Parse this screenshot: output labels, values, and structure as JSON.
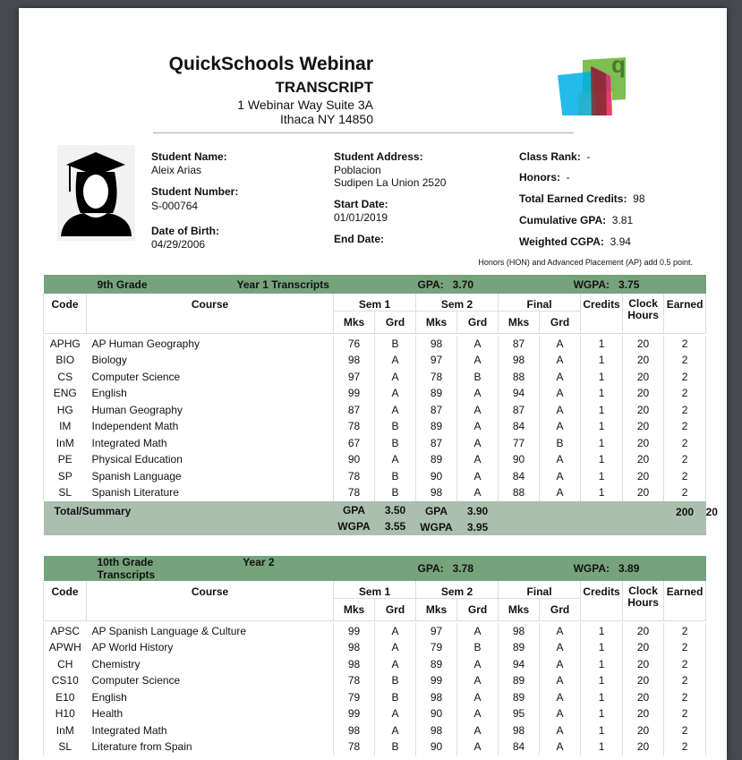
{
  "header": {
    "school": "QuickSchools Webinar",
    "doc_title": "TRANSCRIPT",
    "address_line1": "1 Webinar Way Suite 3A",
    "address_line2": "Ithaca NY 14850",
    "logo_letter": "q"
  },
  "student": {
    "name_label": "Student Name:",
    "name": "Aleix Arias",
    "number_label": "Student Number:",
    "number": "S-000764",
    "dob_label": "Date of Birth:",
    "dob": "04/29/2006",
    "address_label": "Student Address:",
    "address_line1": "Poblacion",
    "address_line2": "Sudipen La Union 2520",
    "start_label": "Start Date:",
    "start": "01/01/2019",
    "end_label": "End Date:",
    "end": "",
    "rank_label": "Class Rank:",
    "rank": "-",
    "honors_label": "Honors:",
    "honors": "-",
    "credits_label": "Total Earned Credits:",
    "credits": "98",
    "cgpa_label": "Cumulative GPA:",
    "cgpa": "3.81",
    "wcgpa_label": "Weighted CGPA:",
    "wcgpa": "3.94",
    "note": "Honors (HON) and Advanced Placement (AP) add 0.5 point."
  },
  "columns": {
    "code": "Code",
    "course": "Course",
    "sem1": "Sem 1",
    "sem2": "Sem 2",
    "final": "Final",
    "credits": "Credits",
    "clock": "Clock Hours",
    "earned": "Earned",
    "mks": "Mks",
    "grd": "Grd"
  },
  "years": [
    {
      "grade": "9th Grade",
      "title": "Year 1 Transcripts",
      "gpa_label": "GPA:",
      "gpa": "3.70",
      "wgpa_label": "WGPA:",
      "wgpa": "3.75",
      "rows": [
        [
          "APHG",
          "AP Human Geography",
          "76",
          "B",
          "98",
          "A",
          "87",
          "A",
          "1",
          "20",
          "2"
        ],
        [
          "BIO",
          "Biology",
          "98",
          "A",
          "97",
          "A",
          "98",
          "A",
          "1",
          "20",
          "2"
        ],
        [
          "CS",
          "Computer Science",
          "97",
          "A",
          "78",
          "B",
          "88",
          "A",
          "1",
          "20",
          "2"
        ],
        [
          "ENG",
          "English",
          "99",
          "A",
          "89",
          "A",
          "94",
          "A",
          "1",
          "20",
          "2"
        ],
        [
          "HG",
          "Human Geography",
          "87",
          "A",
          "87",
          "A",
          "87",
          "A",
          "1",
          "20",
          "2"
        ],
        [
          "IM",
          "Independent Math",
          "78",
          "B",
          "89",
          "A",
          "84",
          "A",
          "1",
          "20",
          "2"
        ],
        [
          "InM",
          "Integrated Math",
          "67",
          "B",
          "87",
          "A",
          "77",
          "B",
          "1",
          "20",
          "2"
        ],
        [
          "PE",
          "Physical Education",
          "90",
          "A",
          "89",
          "A",
          "90",
          "A",
          "1",
          "20",
          "2"
        ],
        [
          "SP",
          "Spanish Language",
          "78",
          "B",
          "90",
          "A",
          "84",
          "A",
          "1",
          "20",
          "2"
        ],
        [
          "SL",
          "Spanish Literature",
          "78",
          "B",
          "98",
          "A",
          "88",
          "A",
          "1",
          "20",
          "2"
        ]
      ],
      "summary": {
        "label": "Total/Summary",
        "gpa_label": "GPA",
        "wgpa_label": "WGPA",
        "sem1_gpa": "3.50",
        "sem1_wgpa": "3.55",
        "sem2_gpa": "3.90",
        "sem2_wgpa": "3.95",
        "clock_total": "200",
        "earned_total": "20"
      }
    },
    {
      "grade": "10th Grade",
      "title": "Year 2 Transcripts",
      "gpa_label": "GPA:",
      "gpa": "3.78",
      "wgpa_label": "WGPA:",
      "wgpa": "3.89",
      "rows": [
        [
          "APSC",
          "AP Spanish Language & Culture",
          "99",
          "A",
          "97",
          "A",
          "98",
          "A",
          "1",
          "20",
          "2"
        ],
        [
          "APWH",
          "AP World History",
          "98",
          "A",
          "79",
          "B",
          "89",
          "A",
          "1",
          "20",
          "2"
        ],
        [
          "CH",
          "Chemistry",
          "98",
          "A",
          "89",
          "A",
          "94",
          "A",
          "1",
          "20",
          "2"
        ],
        [
          "CS10",
          "Computer Science",
          "78",
          "B",
          "99",
          "A",
          "89",
          "A",
          "1",
          "20",
          "2"
        ],
        [
          "E10",
          "English",
          "79",
          "B",
          "98",
          "A",
          "89",
          "A",
          "1",
          "20",
          "2"
        ],
        [
          "H10",
          "Health",
          "99",
          "A",
          "90",
          "A",
          "95",
          "A",
          "1",
          "20",
          "2"
        ],
        [
          "InM",
          "Integrated Math",
          "98",
          "A",
          "98",
          "A",
          "98",
          "A",
          "1",
          "20",
          "2"
        ],
        [
          "SL",
          "Literature from Spain",
          "78",
          "B",
          "90",
          "A",
          "84",
          "A",
          "1",
          "20",
          "2"
        ]
      ]
    }
  ]
}
